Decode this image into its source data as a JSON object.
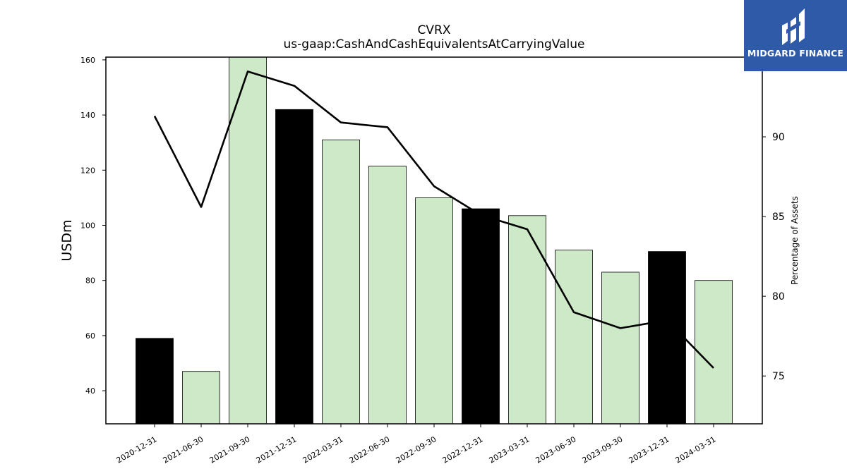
{
  "chart_data": {
    "type": "bar",
    "title": "CVRX",
    "subtitle": "us-gaap:CashAndCashEquivalentsAtCarryingValue",
    "ylabel": "USDm",
    "y2label": "Percentage of Assets",
    "categories": [
      "2020-12-31",
      "2021-06-30",
      "2021-09-30",
      "2021-12-31",
      "2022-03-31",
      "2022-06-30",
      "2022-09-30",
      "2022-12-31",
      "2023-03-31",
      "2023-06-30",
      "2023-09-30",
      "2023-12-31",
      "2024-03-31"
    ],
    "bar_values": [
      59,
      47,
      161,
      142,
      131,
      121.5,
      110,
      106,
      103.5,
      91,
      83,
      90.5,
      80
    ],
    "bar_colors": [
      "#000000",
      "#cde9c7",
      "#cde9c7",
      "#000000",
      "#cde9c7",
      "#cde9c7",
      "#cde9c7",
      "#000000",
      "#cde9c7",
      "#cde9c7",
      "#cde9c7",
      "#000000",
      "#cde9c7"
    ],
    "line_values": [
      91.3,
      85.6,
      94.1,
      93.2,
      90.9,
      90.6,
      86.9,
      85.1,
      84.2,
      79.0,
      78.0,
      78.5,
      75.5
    ],
    "ylim": [
      28,
      161
    ],
    "yticks": [
      40,
      60,
      80,
      100,
      120,
      140,
      160
    ],
    "y2lim": [
      72,
      95.0
    ],
    "y2ticks": [
      75,
      80,
      85,
      90
    ],
    "grid": false
  },
  "logo": {
    "text": "MIDGARD FINANCE"
  }
}
